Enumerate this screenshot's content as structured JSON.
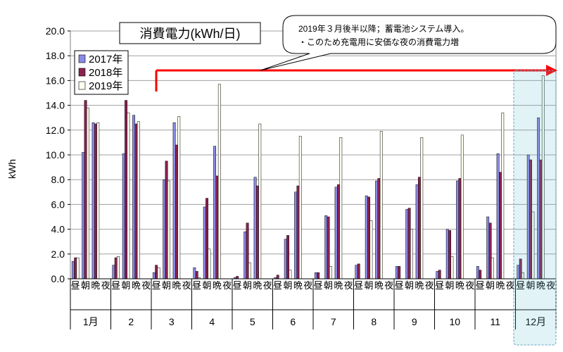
{
  "chart_data": {
    "type": "bar",
    "title": "消費電力(kWh/日)",
    "ylabel": "kWh",
    "ylim": [
      0,
      20
    ],
    "yticks": [
      "0.0",
      "2.0",
      "4.0",
      "6.0",
      "8.0",
      "10.0",
      "12.0",
      "14.0",
      "16.0",
      "18.0",
      "20.0"
    ],
    "grid": true,
    "legend_position": "top-left",
    "months": [
      "1月",
      "2",
      "3",
      "4",
      "5",
      "6",
      "7",
      "8",
      "9",
      "10",
      "11",
      "12月"
    ],
    "periods": [
      "昼",
      "朝",
      "晩",
      "夜"
    ],
    "series": [
      {
        "name": "2017年",
        "color": "#8a8ae6",
        "values": [
          1.4,
          10.2,
          12.6,
          0,
          1.1,
          10.1,
          13.2,
          0,
          0.5,
          8.0,
          12.6,
          0,
          0.9,
          5.8,
          10.7,
          0,
          0.1,
          3.8,
          8.2,
          0,
          0.1,
          3.2,
          7.0,
          0,
          0.5,
          5.1,
          7.4,
          0,
          1.1,
          6.7,
          7.9,
          0,
          1.0,
          5.6,
          7.6,
          0,
          0.6,
          4.0,
          7.9,
          0,
          1.0,
          5.0,
          10.1,
          0,
          1.1,
          10.0,
          13.0,
          0
        ]
      },
      {
        "name": "2018年",
        "color": "#8b2252",
        "values": [
          1.7,
          14.4,
          12.5,
          0,
          1.7,
          14.4,
          12.5,
          0,
          1.1,
          9.5,
          10.8,
          0,
          0.6,
          6.5,
          8.3,
          0,
          0.2,
          4.5,
          7.5,
          0,
          0.3,
          3.5,
          7.5,
          0,
          0.5,
          5.0,
          7.6,
          0,
          1.2,
          6.6,
          8.1,
          0,
          1.0,
          5.7,
          8.2,
          0,
          0.7,
          3.9,
          8.1,
          0,
          0.7,
          4.5,
          8.6,
          0,
          1.6,
          9.6,
          9.6,
          0
        ]
      },
      {
        "name": "2019年",
        "color": "#fffff0",
        "values": [
          1.7,
          13.8,
          12.6,
          0,
          1.8,
          13.4,
          12.7,
          0,
          0.9,
          7.9,
          13.1,
          0,
          0.1,
          2.4,
          15.7,
          0,
          0,
          1.3,
          12.5,
          0,
          0,
          0.7,
          11.5,
          0,
          0,
          1.0,
          11.4,
          0,
          0,
          4.7,
          11.9,
          0,
          0,
          4.0,
          11.4,
          0,
          0,
          1.8,
          11.6,
          0,
          0,
          1.7,
          13.4,
          0,
          0.5,
          5.4,
          16.4,
          0
        ]
      }
    ],
    "annotation": {
      "line1": "2019年３月後半以降；蓄電池システム導入。",
      "line2": "・このため充電用に安価な夜の消費電力増"
    }
  }
}
